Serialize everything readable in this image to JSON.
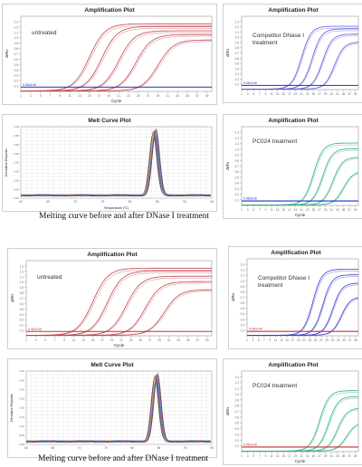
{
  "captions": {
    "top": "Melting curve before and after DNase I treatment",
    "bottom": "Melting curve before and after DNase I treatment"
  },
  "panels": [
    {
      "id": "p1",
      "title": "Amplification Plot",
      "label": "untreated",
      "ylabel": "ΔRn",
      "xlabel": "Cycle",
      "threshold_label": "0.081149",
      "threshold_color": "#1f2bd0",
      "curve_color": "#c0444a",
      "kind": "amp"
    },
    {
      "id": "p2",
      "title": "Amplification Plot",
      "label": "Competitor DNase I treatment",
      "ylabel": "ΔRn",
      "xlabel": "",
      "threshold_label": "0.081149",
      "threshold_color": "#1f2bd0",
      "curve_color": "#5a5ad8",
      "kind": "amp"
    },
    {
      "id": "p3",
      "title": "Melt Curve Plot",
      "label": "",
      "ylabel": "Derivative Reporter",
      "xlabel": "Temperature (°C)",
      "kind": "melt"
    },
    {
      "id": "p4",
      "title": "Amplification Plot",
      "label": "PC024 treatment",
      "ylabel": "ΔRn",
      "xlabel": "Cycle",
      "threshold_label": "0.081149",
      "threshold_color": "#1f2bd0",
      "curve_color": "#2fae7c",
      "kind": "amp"
    },
    {
      "id": "p5",
      "title": "Amplification Plot",
      "label": "untreated",
      "ylabel": "ΔRn",
      "xlabel": "Cycle",
      "threshold_label": "0.081149",
      "threshold_color": "#c0303a",
      "curve_color": "#c0444a",
      "kind": "amp"
    },
    {
      "id": "p6",
      "title": "Amplification Plot",
      "label": "Competitor DNase I treatment",
      "ylabel": "ΔRn",
      "xlabel": "",
      "threshold_label": "0.081149",
      "threshold_color": "#c0303a",
      "curve_color": "#3a3ad0",
      "kind": "amp"
    },
    {
      "id": "p7",
      "title": "Melt Curve Plot",
      "label": "",
      "ylabel": "Derivative Reporter",
      "xlabel": "",
      "kind": "melt"
    },
    {
      "id": "p8",
      "title": "Amplification Plot",
      "label": "PC024 treatment",
      "ylabel": "ΔRn",
      "xlabel": "Cycle",
      "threshold_label": "0.081149",
      "threshold_color": "#c0303a",
      "curve_color": "#2fae7c",
      "kind": "amp"
    }
  ],
  "chart_data": [
    {
      "type": "line",
      "panel": "p1",
      "title": "Amplification Plot",
      "ylabel": "ΔRn",
      "xlabel": "Cycle",
      "ylim": [
        0,
        1.4
      ],
      "xlim": [
        1,
        40
      ],
      "threshold": 0.08,
      "series": [
        {
          "ct": 15,
          "plateau": 1.25
        },
        {
          "ct": 17.5,
          "plateau": 1.2
        },
        {
          "ct": 21,
          "plateau": 1.12
        },
        {
          "ct": 24.5,
          "plateau": 1.05
        },
        {
          "ct": 29,
          "plateau": 0.95
        }
      ]
    },
    {
      "type": "line",
      "panel": "p2",
      "title": "Amplification Plot",
      "ylabel": "ΔRn",
      "ylim": [
        0,
        1.4
      ],
      "xlim": [
        1,
        40
      ],
      "threshold": 0.08,
      "series": [
        {
          "ct": 21,
          "plateau": 1.2
        },
        {
          "ct": 24.5,
          "plateau": 1.15
        },
        {
          "ct": 28,
          "plateau": 1.05
        },
        {
          "ct": 32,
          "plateau": 0.9
        }
      ]
    },
    {
      "type": "line",
      "panel": "p3",
      "title": "Melt Curve Plot",
      "ylabel": "Derivative Reporter",
      "xlabel": "Temperature (°C)",
      "xlim": [
        60,
        95
      ],
      "ylim": [
        0,
        0.4
      ],
      "peak_temp": 84.5,
      "peak_height": 0.37
    },
    {
      "type": "line",
      "panel": "p4",
      "title": "Amplification Plot",
      "ylabel": "ΔRn",
      "xlabel": "Cycle",
      "ylim": [
        0,
        1.4
      ],
      "xlim": [
        1,
        40
      ],
      "threshold": 0.08,
      "series": [
        {
          "ct": 25,
          "plateau": 1.1
        },
        {
          "ct": 28,
          "plateau": 1.0
        },
        {
          "ct": 31.5,
          "plateau": 0.85
        },
        {
          "ct": 35,
          "plateau": 0.6
        }
      ]
    },
    {
      "type": "line",
      "panel": "p5",
      "title": "Amplification Plot",
      "ylabel": "ΔRn",
      "xlabel": "Cycle",
      "ylim": [
        0,
        1.4
      ],
      "xlim": [
        1,
        40
      ],
      "threshold": 0.08,
      "series": [
        {
          "ct": 15,
          "plateau": 1.25
        },
        {
          "ct": 18,
          "plateau": 1.2
        },
        {
          "ct": 22,
          "plateau": 1.1
        },
        {
          "ct": 26,
          "plateau": 1.0
        },
        {
          "ct": 30,
          "plateau": 0.85
        }
      ]
    },
    {
      "type": "line",
      "panel": "p6",
      "title": "Amplification Plot",
      "ylabel": "ΔRn",
      "ylim": [
        0,
        1.4
      ],
      "xlim": [
        1,
        40
      ],
      "threshold": 0.08,
      "series": [
        {
          "ct": 24,
          "plateau": 1.2
        },
        {
          "ct": 27.5,
          "plateau": 1.1
        },
        {
          "ct": 31,
          "plateau": 0.95
        },
        {
          "ct": 34,
          "plateau": 0.7
        }
      ]
    },
    {
      "type": "line",
      "panel": "p7",
      "title": "Melt Curve Plot",
      "ylabel": "Derivative Reporter",
      "xlim": [
        60,
        95
      ],
      "ylim": [
        0,
        0.4
      ],
      "peak_temp": 84.5,
      "peak_height": 0.37
    },
    {
      "type": "line",
      "panel": "p8",
      "title": "Amplification Plot",
      "ylabel": "ΔRn",
      "xlabel": "Cycle",
      "ylim": [
        0,
        1.4
      ],
      "xlim": [
        1,
        40
      ],
      "threshold": 0.08,
      "series": [
        {
          "ct": 27,
          "plateau": 1.05
        },
        {
          "ct": 30,
          "plateau": 0.95
        },
        {
          "ct": 33,
          "plateau": 0.75
        },
        {
          "ct": 36,
          "plateau": 0.5
        }
      ]
    }
  ]
}
